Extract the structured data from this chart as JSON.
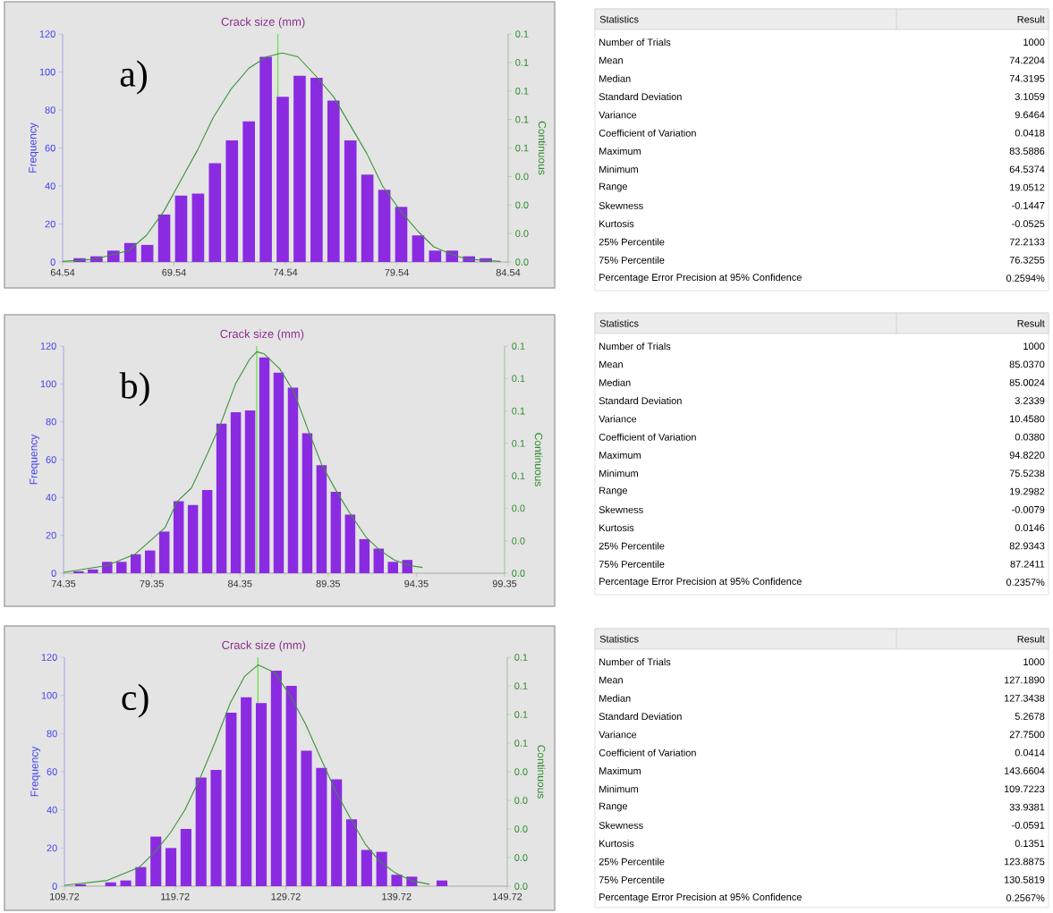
{
  "chart_data": [
    {
      "type": "histogram",
      "title": "Crack size (mm)",
      "ylabel": "Frequency",
      "y2label": "Continuous",
      "annotations": [
        "a)"
      ],
      "xlim": [
        64.54,
        84.54
      ],
      "xticks": [
        64.54,
        69.54,
        74.54,
        79.54,
        84.54
      ],
      "ylim": [
        0,
        120
      ],
      "yticks": [
        0,
        20,
        40,
        60,
        80,
        100,
        120
      ],
      "y2lim": [
        0,
        0.12
      ],
      "y2ticks": [
        {
          "value": 0,
          "label": "0.0"
        },
        {
          "value": 0.015,
          "label": "0.0"
        },
        {
          "value": 0.03,
          "label": "0.0"
        },
        {
          "value": 0.045,
          "label": "0.0"
        },
        {
          "value": 0.06,
          "label": "0.1"
        },
        {
          "value": 0.075,
          "label": "0.1"
        },
        {
          "value": 0.09,
          "label": "0.1"
        },
        {
          "value": 0.105,
          "label": "0.1"
        },
        {
          "value": 0.12,
          "label": "0.1"
        }
      ],
      "ref_lines": [
        {
          "axis": "x",
          "value": 74.2,
          "color": "#6ee04a"
        }
      ],
      "series": [
        {
          "type": "histogram",
          "color": "#8a2be2",
          "bins": [
            64.92,
            65.68,
            66.44,
            67.2,
            67.96,
            68.72,
            69.48,
            70.24,
            71.0,
            71.76,
            72.52,
            73.28,
            74.04,
            74.8,
            75.56,
            76.32,
            77.08,
            77.84,
            78.6,
            79.36,
            80.12,
            80.88,
            81.64,
            82.4,
            83.16,
            83.92
          ],
          "values": [
            2,
            3,
            6,
            10,
            9,
            25,
            35,
            36,
            52,
            64,
            74,
            108,
            87,
            98,
            97,
            85,
            64,
            46,
            38,
            29,
            14,
            6,
            6,
            3,
            2
          ]
        },
        {
          "type": "line",
          "color": "#3a923a",
          "x": [
            64.54,
            66.0,
            67.5,
            68.3,
            69.1,
            69.8,
            70.6,
            71.3,
            72.1,
            72.9,
            73.7,
            74.4,
            75.1,
            75.9,
            76.7,
            77.4,
            78.2,
            78.9,
            79.7,
            80.5,
            81.2,
            82.0,
            82.7,
            84.2
          ],
          "values": [
            0.3,
            1.5,
            6,
            14,
            27,
            42,
            59,
            76,
            91,
            102,
            108,
            110,
            108,
            98,
            87,
            73,
            57,
            40,
            27,
            16,
            8,
            4,
            1.5,
            0.3
          ]
        }
      ]
    },
    {
      "type": "other",
      "categories": [
        "Statistics",
        "Result"
      ],
      "y_categories": [
        "Number of Trials",
        "Mean",
        "Median",
        "Standard Deviation",
        "Variance",
        "Coefficient of Variation",
        "Maximum",
        "Minimum",
        "Range",
        "Skewness",
        "Kurtosis",
        "25% Percentile",
        "75% Percentile",
        "Percentage Error Precision at 95% Confidence"
      ],
      "cell_labels": [
        [
          "1000"
        ],
        [
          "74.2204"
        ],
        [
          "74.3195"
        ],
        [
          "3.1059"
        ],
        [
          "9.6464"
        ],
        [
          "0.0418"
        ],
        [
          "83.5886"
        ],
        [
          "64.5374"
        ],
        [
          "19.0512"
        ],
        [
          "-0.1447"
        ],
        [
          "-0.0525"
        ],
        [
          "72.2133"
        ],
        [
          "76.3255"
        ],
        [
          "0.2594%"
        ]
      ]
    },
    {
      "type": "histogram",
      "title": "Crack size (mm)",
      "ylabel": "Frequency",
      "y2label": "Continuous",
      "annotations": [
        "b)"
      ],
      "xlim": [
        74.35,
        99.35
      ],
      "xticks": [
        74.35,
        79.35,
        84.35,
        89.35,
        94.35,
        99.35
      ],
      "ylim": [
        0,
        120
      ],
      "yticks": [
        0,
        20,
        40,
        60,
        80,
        100,
        120
      ],
      "y2lim": [
        0,
        0.12
      ],
      "y2ticks": [
        {
          "value": 0,
          "label": "0.0"
        },
        {
          "value": 0.0171,
          "label": "0.0"
        },
        {
          "value": 0.0343,
          "label": "0.0"
        },
        {
          "value": 0.0514,
          "label": "0.1"
        },
        {
          "value": 0.0686,
          "label": "0.1"
        },
        {
          "value": 0.0857,
          "label": "0.1"
        },
        {
          "value": 0.1029,
          "label": "0.1"
        },
        {
          "value": 0.12,
          "label": "0.1"
        }
      ],
      "ref_lines": [
        {
          "axis": "x",
          "value": 85.3,
          "color": "#6ee04a"
        }
      ],
      "series": [
        {
          "type": "histogram",
          "color": "#8a2be2",
          "bins": [
            74.8,
            75.61,
            76.42,
            77.23,
            78.04,
            78.85,
            79.66,
            80.47,
            81.28,
            82.09,
            82.9,
            83.71,
            84.52,
            85.33,
            86.14,
            86.95,
            87.76,
            88.57,
            89.38,
            90.19,
            91.0,
            91.81,
            92.62,
            93.43,
            94.24
          ],
          "values": [
            1,
            2,
            6,
            6,
            10,
            12,
            22,
            38,
            36,
            44,
            79,
            85,
            86,
            114,
            106,
            98,
            74,
            57,
            43,
            31,
            18,
            13,
            6,
            7
          ]
        },
        {
          "type": "line",
          "color": "#3a923a",
          "x": [
            74.35,
            76.8,
            78.4,
            80.1,
            80.8,
            81.6,
            82.5,
            83.3,
            84.1,
            84.9,
            85.3,
            85.7,
            86.6,
            87.4,
            88.2,
            89.0,
            89.9,
            90.7,
            91.5,
            92.3,
            93.1,
            94.0,
            94.7
          ],
          "values": [
            0.5,
            4,
            10,
            24,
            38,
            45,
            63,
            80,
            100,
            113,
            117,
            116,
            108,
            96,
            76,
            57,
            42,
            30,
            19,
            12,
            7,
            4,
            3
          ]
        }
      ]
    },
    {
      "type": "other",
      "categories": [
        "Statistics",
        "Result"
      ],
      "y_categories": [
        "Number of Trials",
        "Mean",
        "Median",
        "Standard Deviation",
        "Variance",
        "Coefficient of Variation",
        "Maximum",
        "Minimum",
        "Range",
        "Skewness",
        "Kurtosis",
        "25% Percentile",
        "75% Percentile",
        "Percentage Error Precision at 95% Confidence"
      ],
      "cell_labels": [
        [
          "1000"
        ],
        [
          "85.0370"
        ],
        [
          "85.0024"
        ],
        [
          "3.2339"
        ],
        [
          "10.4580"
        ],
        [
          "0.0380"
        ],
        [
          "94.8220"
        ],
        [
          "75.5238"
        ],
        [
          "19.2982"
        ],
        [
          "-0.0079"
        ],
        [
          "0.0146"
        ],
        [
          "82.9343"
        ],
        [
          "87.2411"
        ],
        [
          "0.2357%"
        ]
      ]
    },
    {
      "type": "histogram",
      "title": "Crack size (mm)",
      "ylabel": "Frequency",
      "y2label": "Continuous",
      "annotations": [
        "c)"
      ],
      "xlim": [
        109.72,
        149.72
      ],
      "xticks": [
        109.72,
        119.72,
        129.72,
        139.72,
        149.72
      ],
      "ylim": [
        0,
        120
      ],
      "yticks": [
        0,
        20,
        40,
        60,
        80,
        100,
        120
      ],
      "y2lim": [
        0,
        0.096
      ],
      "y2ticks": [
        {
          "value": 0,
          "label": "0.0"
        },
        {
          "value": 0.012,
          "label": "0.0"
        },
        {
          "value": 0.024,
          "label": "0.0"
        },
        {
          "value": 0.036,
          "label": "0.0"
        },
        {
          "value": 0.048,
          "label": "0.0"
        },
        {
          "value": 0.06,
          "label": "0.1"
        },
        {
          "value": 0.072,
          "label": "0.1"
        },
        {
          "value": 0.084,
          "label": "0.1"
        },
        {
          "value": 0.096,
          "label": "0.1"
        }
      ],
      "ref_lines": [
        {
          "axis": "x",
          "value": 127.2,
          "color": "#6ee04a"
        }
      ],
      "series": [
        {
          "type": "histogram",
          "color": "#8a2be2",
          "bins": [
            110.5,
            111.86,
            113.22,
            114.58,
            115.94,
            117.3,
            118.66,
            120.02,
            121.38,
            122.74,
            124.1,
            125.46,
            126.82,
            128.18,
            129.54,
            130.9,
            132.26,
            133.62,
            134.98,
            136.34,
            137.7,
            139.06,
            140.42,
            141.78,
            143.14,
            144.5
          ],
          "values": [
            1,
            0,
            2,
            3,
            10,
            26,
            20,
            30,
            57,
            61,
            91,
            99,
            96,
            113,
            105,
            71,
            62,
            56,
            35,
            19,
            18,
            6,
            5,
            0,
            3
          ]
        },
        {
          "type": "line",
          "color": "#3a923a",
          "x": [
            109.72,
            113.6,
            116.5,
            117.9,
            119.3,
            120.6,
            122.0,
            123.3,
            124.7,
            126.0,
            127.2,
            128.7,
            130.1,
            131.5,
            132.8,
            134.2,
            135.6,
            136.9,
            138.2,
            139.6,
            141.0,
            142.7
          ],
          "values": [
            0.5,
            3,
            10,
            18,
            28,
            40,
            57,
            75,
            96,
            110,
            116,
            112,
            100,
            85,
            68,
            50,
            35,
            22,
            13,
            7,
            3,
            1
          ]
        }
      ]
    },
    {
      "type": "other",
      "categories": [
        "Statistics",
        "Result"
      ],
      "y_categories": [
        "Number of Trials",
        "Mean",
        "Median",
        "Standard Deviation",
        "Variance",
        "Coefficient of Variation",
        "Maximum",
        "Minimum",
        "Range",
        "Skewness",
        "Kurtosis",
        "25% Percentile",
        "75% Percentile",
        "Percentage Error Precision at 95% Confidence"
      ],
      "cell_labels": [
        [
          "1000"
        ],
        [
          "127.1890"
        ],
        [
          "127.3438"
        ],
        [
          "5.2678"
        ],
        [
          "27.7500"
        ],
        [
          "0.0414"
        ],
        [
          "143.6604"
        ],
        [
          "109.7223"
        ],
        [
          "33.9381"
        ],
        [
          "-0.0591"
        ],
        [
          "0.1351"
        ],
        [
          "123.8875"
        ],
        [
          "130.5819"
        ],
        [
          "0.2567%"
        ]
      ]
    }
  ]
}
